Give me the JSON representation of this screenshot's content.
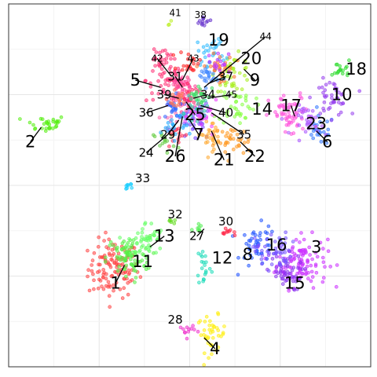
{
  "chart_data": {
    "type": "scatter",
    "title": "",
    "xlabel": "",
    "ylabel": "",
    "xlim": [
      0,
      100
    ],
    "ylim": [
      0,
      100
    ],
    "grid": true,
    "clusters": [
      {
        "id": "1",
        "center": [
          29,
          27
        ],
        "spread": [
          3.5,
          4
        ],
        "count": 120,
        "color": "#ff4444"
      },
      {
        "id": "2",
        "center": [
          10,
          67
        ],
        "spread": [
          3.0,
          1.2
        ],
        "count": 30,
        "color": "#55ee11"
      },
      {
        "id": "3",
        "center": [
          81,
          29
        ],
        "spread": [
          3.5,
          3.5
        ],
        "count": 110,
        "color": "#cc33ff"
      },
      {
        "id": "4",
        "center": [
          56,
          9
        ],
        "spread": [
          2.0,
          2.5
        ],
        "count": 40,
        "color": "#ffee11"
      },
      {
        "id": "5",
        "center": [
          44,
          79
        ],
        "spread": [
          3.0,
          3.0
        ],
        "count": 60,
        "color": "#ff3377"
      },
      {
        "id": "6",
        "center": [
          86,
          65
        ],
        "spread": [
          2.0,
          2.0
        ],
        "count": 25,
        "color": "#3377ff"
      },
      {
        "id": "7",
        "center": [
          51,
          68
        ],
        "spread": [
          2.5,
          3.0
        ],
        "count": 40,
        "color": "#7744ff"
      },
      {
        "id": "8",
        "center": [
          69,
          33
        ],
        "spread": [
          2.5,
          3.0
        ],
        "count": 45,
        "color": "#2255ff"
      },
      {
        "id": "9",
        "center": [
          62,
          81
        ],
        "spread": [
          2.5,
          2.5
        ],
        "count": 40,
        "color": "#aaee22"
      },
      {
        "id": "10",
        "center": [
          89,
          74
        ],
        "spread": [
          2.5,
          2.5
        ],
        "count": 45,
        "color": "#9944ee"
      },
      {
        "id": "11",
        "center": [
          33,
          30
        ],
        "spread": [
          3.0,
          3.0
        ],
        "count": 80,
        "color": "#55ee44"
      },
      {
        "id": "12",
        "center": [
          54,
          28
        ],
        "spread": [
          1.0,
          3.0
        ],
        "count": 20,
        "color": "#22ddbb"
      },
      {
        "id": "13",
        "center": [
          38,
          35
        ],
        "spread": [
          2.5,
          2.5
        ],
        "count": 50,
        "color": "#66ff66"
      },
      {
        "id": "14",
        "center": [
          63,
          72
        ],
        "spread": [
          2.5,
          2.5
        ],
        "count": 40,
        "color": "#88ff44"
      },
      {
        "id": "15",
        "center": [
          76,
          26
        ],
        "spread": [
          2.5,
          2.5
        ],
        "count": 50,
        "color": "#8833ee"
      },
      {
        "id": "16",
        "center": [
          73,
          32
        ],
        "spread": [
          2.5,
          2.5
        ],
        "count": 50,
        "color": "#7755ff"
      },
      {
        "id": "17",
        "center": [
          78,
          69
        ],
        "spread": [
          3.0,
          3.0
        ],
        "count": 60,
        "color": "#ff55dd"
      },
      {
        "id": "18",
        "center": [
          92,
          82
        ],
        "spread": [
          1.2,
          1.2
        ],
        "count": 18,
        "color": "#33dd33"
      },
      {
        "id": "19",
        "center": [
          56,
          87
        ],
        "spread": [
          2.0,
          2.0
        ],
        "count": 30,
        "color": "#33bbff"
      },
      {
        "id": "20",
        "center": [
          58,
          82
        ],
        "spread": [
          2.0,
          2.0
        ],
        "count": 30,
        "color": "#ff7733"
      },
      {
        "id": "21",
        "center": [
          56,
          64
        ],
        "spread": [
          2.0,
          2.0
        ],
        "count": 30,
        "color": "#ffaa33"
      },
      {
        "id": "22",
        "center": [
          62,
          62
        ],
        "spread": [
          2.5,
          2.0
        ],
        "count": 35,
        "color": "#ff9922"
      },
      {
        "id": "23",
        "center": [
          83,
          68
        ],
        "spread": [
          2.0,
          2.0
        ],
        "count": 30,
        "color": "#aa55ff"
      },
      {
        "id": "24",
        "center": [
          43,
          62
        ],
        "spread": [
          1.5,
          1.5
        ],
        "count": 15,
        "color": "#66cc44"
      },
      {
        "id": "25",
        "center": [
          47,
          73
        ],
        "spread": [
          2.5,
          2.5
        ],
        "count": 40,
        "color": "#ff66aa"
      },
      {
        "id": "26",
        "center": [
          46,
          64
        ],
        "spread": [
          1.5,
          1.5
        ],
        "count": 15,
        "color": "#ff3355"
      },
      {
        "id": "27",
        "center": [
          53,
          38
        ],
        "spread": [
          1.0,
          1.0
        ],
        "count": 8,
        "color": "#55ee55"
      },
      {
        "id": "28",
        "center": [
          49,
          10
        ],
        "spread": [
          1.2,
          1.0
        ],
        "count": 12,
        "color": "#ee33cc"
      },
      {
        "id": "29",
        "center": [
          46,
          67
        ],
        "spread": [
          2.0,
          2.0
        ],
        "count": 25,
        "color": "#22aaff"
      },
      {
        "id": "30",
        "center": [
          61,
          37
        ],
        "spread": [
          1.0,
          0.5
        ],
        "count": 10,
        "color": "#ff2244"
      },
      {
        "id": "31",
        "center": [
          48,
          77
        ],
        "spread": [
          2.0,
          2.0
        ],
        "count": 30,
        "color": "#ff4499"
      },
      {
        "id": "32",
        "center": [
          45,
          40
        ],
        "spread": [
          0.8,
          0.4
        ],
        "count": 6,
        "color": "#66dd22"
      },
      {
        "id": "33",
        "center": [
          33,
          50
        ],
        "spread": [
          0.6,
          1.0
        ],
        "count": 8,
        "color": "#11ccff"
      },
      {
        "id": "34",
        "center": [
          50,
          74
        ],
        "spread": [
          1.5,
          1.5
        ],
        "count": 20,
        "color": "#ff2266"
      },
      {
        "id": "35",
        "center": [
          54,
          69
        ],
        "spread": [
          2.0,
          2.0
        ],
        "count": 25,
        "color": "#ee44ff"
      },
      {
        "id": "36",
        "center": [
          45,
          71
        ],
        "spread": [
          1.5,
          1.5
        ],
        "count": 20,
        "color": "#3366ff"
      },
      {
        "id": "37",
        "center": [
          55,
          80
        ],
        "spread": [
          1.5,
          1.5
        ],
        "count": 25,
        "color": "#4488ff"
      },
      {
        "id": "38",
        "center": [
          54,
          95
        ],
        "spread": [
          1.2,
          1.0
        ],
        "count": 12,
        "color": "#6633cc"
      },
      {
        "id": "39",
        "center": [
          47,
          74
        ],
        "spread": [
          1.5,
          1.5
        ],
        "count": 20,
        "color": "#ff7755"
      },
      {
        "id": "40",
        "center": [
          52,
          71
        ],
        "spread": [
          1.5,
          1.5
        ],
        "count": 20,
        "color": "#33ccaa"
      },
      {
        "id": "41",
        "center": [
          44,
          95
        ],
        "spread": [
          0.4,
          0.4
        ],
        "count": 3,
        "color": "#bbee22"
      },
      {
        "id": "42",
        "center": [
          42,
          85
        ],
        "spread": [
          1.5,
          1.5
        ],
        "count": 20,
        "color": "#ff3377"
      },
      {
        "id": "43",
        "center": [
          50,
          84
        ],
        "spread": [
          1.5,
          1.5
        ],
        "count": 20,
        "color": "#ff2222"
      },
      {
        "id": "44",
        "center": [
          58,
          84
        ],
        "spread": [
          1.5,
          1.5
        ],
        "count": 15,
        "color": "#bb33ff"
      },
      {
        "id": "45",
        "center": [
          53,
          75
        ],
        "spread": [
          1.5,
          1.5
        ],
        "count": 20,
        "color": "#44dd66"
      }
    ],
    "labels": [
      {
        "text": "1",
        "x": 29.5,
        "y": 23,
        "size": "large",
        "leader_to": [
          32,
          28
        ]
      },
      {
        "text": "2",
        "x": 6,
        "y": 62,
        "size": "large",
        "leader_to": [
          9,
          66
        ]
      },
      {
        "text": "3",
        "x": 85,
        "y": 33,
        "size": "large"
      },
      {
        "text": "4",
        "x": 57,
        "y": 5,
        "size": "large",
        "leader_to": [
          54,
          8
        ]
      },
      {
        "text": "5",
        "x": 35,
        "y": 79,
        "size": "large",
        "leader_to": [
          42,
          77
        ]
      },
      {
        "text": "6",
        "x": 88,
        "y": 62,
        "size": "large",
        "leader_to": [
          85,
          65
        ]
      },
      {
        "text": "7",
        "x": 52.5,
        "y": 64,
        "size": "large",
        "leader_to": [
          50,
          68
        ]
      },
      {
        "text": "8",
        "x": 66,
        "y": 31,
        "size": "large"
      },
      {
        "text": "9",
        "x": 68,
        "y": 79,
        "size": "large",
        "leader_to": [
          65,
          82
        ]
      },
      {
        "text": "10",
        "x": 92,
        "y": 75,
        "size": "large"
      },
      {
        "text": "11",
        "x": 37,
        "y": 29,
        "size": "large"
      },
      {
        "text": "12",
        "x": 59,
        "y": 30,
        "size": "large"
      },
      {
        "text": "13",
        "x": 43,
        "y": 36,
        "size": "large",
        "leader_to": [
          39,
          33
        ]
      },
      {
        "text": "14",
        "x": 70,
        "y": 71,
        "size": "large"
      },
      {
        "text": "15",
        "x": 79,
        "y": 23,
        "size": "large"
      },
      {
        "text": "16",
        "x": 74,
        "y": 33.5,
        "size": "large"
      },
      {
        "text": "17",
        "x": 78,
        "y": 72,
        "size": "large",
        "leader_to": [
          79,
          69
        ]
      },
      {
        "text": "18",
        "x": 96,
        "y": 82,
        "size": "large"
      },
      {
        "text": "19",
        "x": 58,
        "y": 90,
        "size": "large"
      },
      {
        "text": "20",
        "x": 67,
        "y": 85,
        "size": "large"
      },
      {
        "text": "21",
        "x": 59.5,
        "y": 57,
        "size": "large",
        "leader_to": [
          56,
          65
        ]
      },
      {
        "text": "22",
        "x": 68,
        "y": 58,
        "size": "large",
        "leader_to": [
          64,
          62
        ]
      },
      {
        "text": "23",
        "x": 85,
        "y": 67,
        "size": "large"
      },
      {
        "text": "24",
        "x": 38,
        "y": 59,
        "size": "medium",
        "leader_to": [
          44,
          64
        ]
      },
      {
        "text": "25",
        "x": 51.5,
        "y": 69.5,
        "size": "large",
        "leader_to": [
          49,
          73
        ]
      },
      {
        "text": "26",
        "x": 46,
        "y": 58,
        "size": "large",
        "leader_to": [
          48,
          69
        ]
      },
      {
        "text": "27",
        "x": 52,
        "y": 36,
        "size": "medium",
        "leader_to": [
          54,
          38
        ]
      },
      {
        "text": "28",
        "x": 46,
        "y": 13,
        "size": "medium"
      },
      {
        "text": "29",
        "x": 44,
        "y": 64,
        "size": "medium",
        "leader_to": [
          47,
          68
        ]
      },
      {
        "text": "30",
        "x": 60,
        "y": 40,
        "size": "medium"
      },
      {
        "text": "31",
        "x": 46,
        "y": 80,
        "size": "medium",
        "leader_to": [
          48,
          77
        ]
      },
      {
        "text": "32",
        "x": 46,
        "y": 42,
        "size": "medium"
      },
      {
        "text": "33",
        "x": 37,
        "y": 52,
        "size": "medium"
      },
      {
        "text": "34",
        "x": 55,
        "y": 75,
        "size": "medium",
        "leader_to": [
          51,
          74
        ]
      },
      {
        "text": "35",
        "x": 65,
        "y": 64,
        "size": "medium",
        "leader_to": [
          56,
          70
        ]
      },
      {
        "text": "36",
        "x": 38,
        "y": 70,
        "size": "medium",
        "leader_to": [
          44,
          72
        ]
      },
      {
        "text": "37",
        "x": 60,
        "y": 80,
        "size": "medium",
        "leader_to": [
          55,
          78
        ]
      },
      {
        "text": "38",
        "x": 53,
        "y": 97,
        "size": "small"
      },
      {
        "text": "39",
        "x": 43,
        "y": 75,
        "size": "medium",
        "leader_to": [
          47,
          74
        ]
      },
      {
        "text": "40",
        "x": 60,
        "y": 70,
        "size": "medium",
        "leader_to": [
          53,
          72
        ]
      },
      {
        "text": "41",
        "x": 46,
        "y": 97.5,
        "size": "small"
      },
      {
        "text": "42",
        "x": 41,
        "y": 85,
        "size": "small",
        "leader_to": [
          45,
          80
        ]
      },
      {
        "text": "43",
        "x": 51,
        "y": 85,
        "size": "small",
        "leader_to": [
          48,
          79
        ]
      },
      {
        "text": "44",
        "x": 71,
        "y": 91,
        "size": "small",
        "leader_to": [
          54,
          77
        ]
      },
      {
        "text": "45",
        "x": 61.5,
        "y": 75,
        "size": "small",
        "leader_to": [
          55,
          74
        ]
      }
    ]
  }
}
